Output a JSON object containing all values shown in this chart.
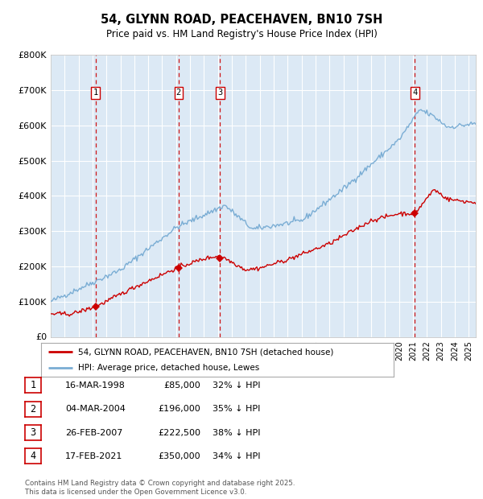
{
  "title": "54, GLYNN ROAD, PEACEHAVEN, BN10 7SH",
  "subtitle": "Price paid vs. HM Land Registry's House Price Index (HPI)",
  "bg_color": "#dce9f5",
  "grid_color": "#ffffff",
  "ylim": [
    0,
    800000
  ],
  "yticks": [
    0,
    100000,
    200000,
    300000,
    400000,
    500000,
    600000,
    700000,
    800000
  ],
  "ytick_labels": [
    "£0",
    "£100K",
    "£200K",
    "£300K",
    "£400K",
    "£500K",
    "£600K",
    "£700K",
    "£800K"
  ],
  "xlim_start": 1995.0,
  "xlim_end": 2025.5,
  "sale_dates": [
    1998.21,
    2004.17,
    2007.15,
    2021.13
  ],
  "sale_prices": [
    85000,
    196000,
    222500,
    350000
  ],
  "sale_labels": [
    "1",
    "2",
    "3",
    "4"
  ],
  "vline_color": "#cc0000",
  "sale_marker_color": "#cc0000",
  "red_line_color": "#cc0000",
  "blue_line_color": "#7aadd4",
  "legend_entries": [
    "54, GLYNN ROAD, PEACEHAVEN, BN10 7SH (detached house)",
    "HPI: Average price, detached house, Lewes"
  ],
  "table_rows": [
    {
      "num": "1",
      "date": "16-MAR-1998",
      "price": "£85,000",
      "pct": "32% ↓ HPI"
    },
    {
      "num": "2",
      "date": "04-MAR-2004",
      "price": "£196,000",
      "pct": "35% ↓ HPI"
    },
    {
      "num": "3",
      "date": "26-FEB-2007",
      "price": "£222,500",
      "pct": "38% ↓ HPI"
    },
    {
      "num": "4",
      "date": "17-FEB-2021",
      "price": "£350,000",
      "pct": "34% ↓ HPI"
    }
  ],
  "footer": "Contains HM Land Registry data © Crown copyright and database right 2025.\nThis data is licensed under the Open Government Licence v3.0."
}
